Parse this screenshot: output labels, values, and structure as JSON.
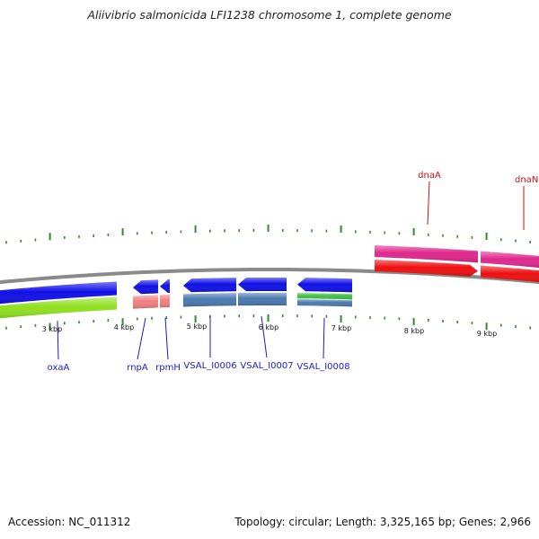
{
  "title": "Aliivibrio salmonicida LFI1238 chromosome 1, complete genome",
  "footer": {
    "accession": "Accession: NC_011312",
    "topology": "Topology: circular; Length: 3,325,165 bp; Genes: 2,966"
  },
  "colors": {
    "backbone": "#8a8a8a",
    "tick": "#2e8b2e",
    "gene_blue": "#1010e8",
    "gene_pink": "#e0288c",
    "gene_red": "#ee1010",
    "gene_green": "#90e020",
    "gene_salmon": "#f08080",
    "gene_steel": "#4a7ab0",
    "gene_lightgreen": "#40c040",
    "label_blue": "#1a1acc",
    "label_red": "#cc1111"
  },
  "ruler": {
    "labels": [
      "3 kbp",
      "4 kbp",
      "5 kbp",
      "6 kbp",
      "7 kbp",
      "8 kbp",
      "9 kbp"
    ]
  },
  "genes": [
    {
      "label": "oxaA",
      "color": "label_blue"
    },
    {
      "label": "rnpA",
      "color": "label_blue"
    },
    {
      "label": "rpmH",
      "color": "label_blue"
    },
    {
      "label": "VSAL_I0006",
      "color": "label_blue"
    },
    {
      "label": "VSAL_I0007",
      "color": "label_blue"
    },
    {
      "label": "VSAL_I0008",
      "color": "label_blue"
    },
    {
      "label": "dnaA",
      "color": "label_red"
    },
    {
      "label": "dnaN",
      "color": "label_red"
    }
  ]
}
